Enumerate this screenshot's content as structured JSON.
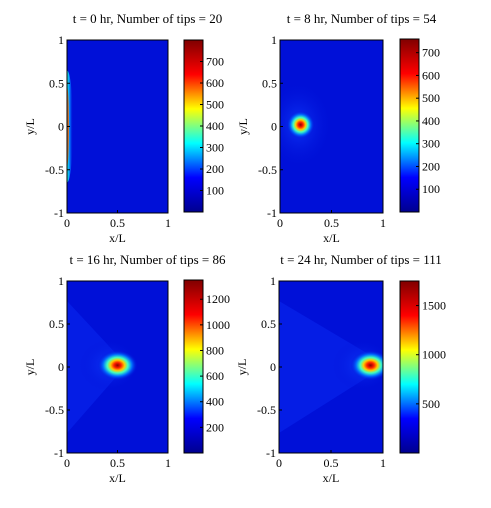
{
  "chart_data": [
    {
      "type": "heatmap",
      "title": "t = 0 hr,   Number of tips = 20",
      "xlabel": "x/L",
      "ylabel": "y/L",
      "xlim": [
        0,
        1
      ],
      "ylim": [
        -1,
        1
      ],
      "xticks": [
        "0",
        "0.5",
        "1"
      ],
      "yticks": [
        "1",
        "0.5",
        "0",
        "-0.5",
        "-1"
      ],
      "colorbar": {
        "min": 0,
        "max": 800,
        "ticks": [
          "700",
          "600",
          "500",
          "400",
          "300",
          "200",
          "100"
        ],
        "tick_values": [
          700,
          600,
          500,
          400,
          300,
          200,
          100
        ]
      },
      "blob": {
        "kind": "edge",
        "x": 0.0,
        "y": 0.0,
        "peak": 720
      }
    },
    {
      "type": "heatmap",
      "title": "t = 8 hr,   Number of tips = 54",
      "xlabel": "x/L",
      "ylabel": "y/L",
      "xlim": [
        0,
        1
      ],
      "ylim": [
        -1,
        1
      ],
      "xticks": [
        "0",
        "0.5",
        "1"
      ],
      "yticks": [
        "1",
        "0.5",
        "0",
        "-0.5",
        "-1"
      ],
      "colorbar": {
        "min": 0,
        "max": 760,
        "ticks": [
          "700",
          "600",
          "500",
          "400",
          "300",
          "200",
          "100"
        ],
        "tick_values": [
          700,
          600,
          500,
          400,
          300,
          200,
          100
        ]
      },
      "blob": {
        "kind": "spot",
        "x": 0.2,
        "y": 0.02,
        "peak": 750
      }
    },
    {
      "type": "heatmap",
      "title": "t = 16 hr,   Number of tips = 86",
      "xlabel": "x/L",
      "ylabel": "y/L",
      "xlim": [
        0,
        1
      ],
      "ylim": [
        -1,
        1
      ],
      "xticks": [
        "0",
        "0.5",
        "1"
      ],
      "yticks": [
        "1",
        "0.5",
        "0",
        "-0.5",
        "-1"
      ],
      "colorbar": {
        "min": 0,
        "max": 1350,
        "ticks": [
          "1200",
          "1000",
          "800",
          "600",
          "400",
          "200"
        ],
        "tick_values": [
          1200,
          1000,
          800,
          600,
          400,
          200
        ]
      },
      "blob": {
        "kind": "crescent",
        "x": 0.5,
        "y": 0.02,
        "peak": 1300
      }
    },
    {
      "type": "heatmap",
      "title": "t = 24 hr,   Number of tips = 111",
      "xlabel": "x/L",
      "ylabel": "y/L",
      "xlim": [
        0,
        1
      ],
      "ylim": [
        -1,
        1
      ],
      "xticks": [
        "0",
        "0.5",
        "1"
      ],
      "yticks": [
        "1",
        "0.5",
        "0",
        "-0.5",
        "-1"
      ],
      "colorbar": {
        "min": 0,
        "max": 1750,
        "ticks": [
          "1500",
          "1000",
          "500"
        ],
        "tick_values": [
          1500,
          1000,
          500
        ]
      },
      "blob": {
        "kind": "crescent",
        "x": 0.88,
        "y": 0.02,
        "peak": 1700
      }
    }
  ],
  "colors": {
    "jet": [
      "#00008f",
      "#0000ff",
      "#00ffff",
      "#ffff00",
      "#ff0000",
      "#800000"
    ]
  }
}
